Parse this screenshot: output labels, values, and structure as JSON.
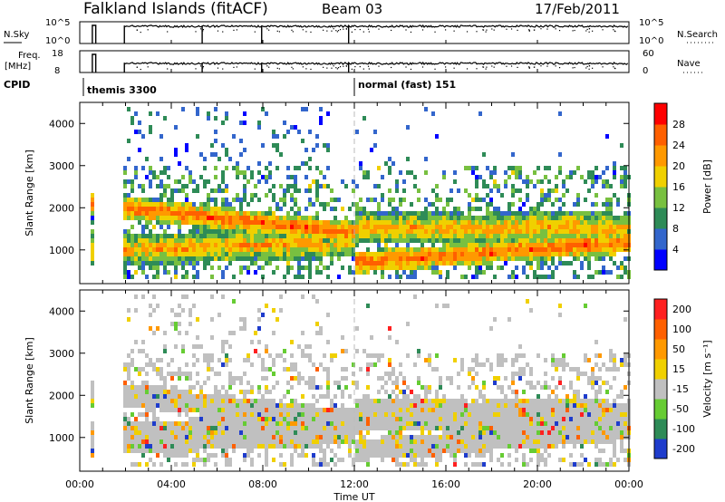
{
  "header": {
    "title": "Falkland Islands (fitACF)",
    "beam": "Beam 03",
    "date": "17/Feb/2011"
  },
  "nsky_panel": {
    "left_label": "N.Sky",
    "left_ticks": [
      "10^5",
      "10^0"
    ],
    "right_label": "N.Search",
    "right_ticks": [
      "10^5",
      "10^0"
    ],
    "right_legend_line": "dotted"
  },
  "freq_panel": {
    "left_label_1": "Freq.",
    "left_label_2": "[MHz]",
    "left_ticks": [
      "18",
      "8"
    ],
    "right_label": "Nave",
    "right_ticks": [
      "60",
      "0"
    ],
    "right_legend_line": "dotted"
  },
  "cpid": {
    "label": "CPID",
    "segments": [
      {
        "text": "themis 3300"
      },
      {
        "text": "normal (fast) 151"
      }
    ]
  },
  "x_axis": {
    "label": "Time UT",
    "ticks": [
      "00:00",
      "04:00",
      "08:00",
      "12:00",
      "16:00",
      "20:00",
      "00:00"
    ]
  },
  "power_colorbar": {
    "label": "Power [dB]",
    "ticks": [
      "4",
      "8",
      "12",
      "16",
      "20",
      "24",
      "28"
    ],
    "colors": [
      "#0000ff",
      "#3366cc",
      "#2e8b57",
      "#78c040",
      "#f0d000",
      "#ff9900",
      "#ff6000",
      "#ff0000"
    ]
  },
  "velocity_colorbar": {
    "label": "Velocity [m s⁻¹]",
    "ticks": [
      "200",
      "100",
      "50",
      "15",
      "-15",
      "-50",
      "-100",
      "-200"
    ],
    "colors": [
      "#1e3ccc",
      "#2e8b57",
      "#66cc33",
      "#c0c0c0",
      "#f0d000",
      "#ff9900",
      "#ff6000",
      "#ff2020"
    ]
  },
  "chart_data": [
    {
      "type": "heatmap",
      "title": "",
      "xlabel": "Time UT",
      "ylabel": "Slant Range [km]",
      "xlim": [
        "00:00",
        "24:00"
      ],
      "ylim": [
        200,
        4500
      ],
      "yticks": [
        1000,
        2000,
        3000,
        4000
      ],
      "colorbar_label": "Power [dB]",
      "colorbar_range": [
        0,
        32
      ],
      "note": ""
    },
    {
      "type": "heatmap",
      "title": "",
      "xlabel": "Time UT",
      "ylabel": "Slant Range [km]",
      "xlim": [
        "00:00",
        "24:00"
      ],
      "ylim": [
        200,
        4500
      ],
      "yticks": [
        1000,
        2000,
        3000,
        4000
      ],
      "colorbar_label": "Velocity [m s⁻¹]",
      "colorbar_ticks": [
        200,
        100,
        50,
        15,
        -15,
        -50,
        -100,
        -200
      ]
    }
  ]
}
